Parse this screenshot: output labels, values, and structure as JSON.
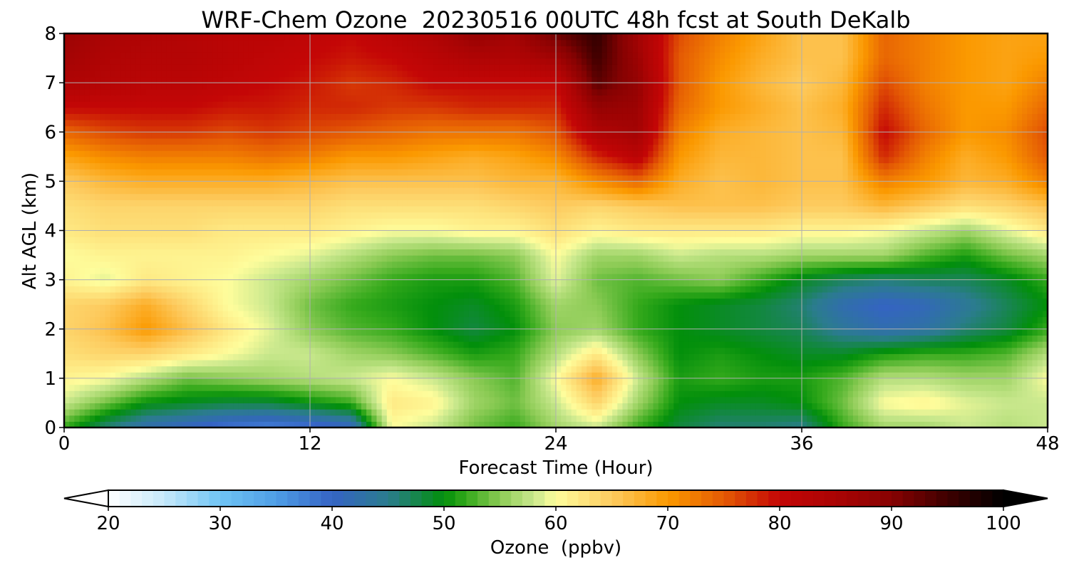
{
  "chart_data": {
    "type": "heatmap",
    "title": "WRF-Chem Ozone  20230516 00UTC 48h fcst at South DeKalb",
    "xlabel": "Forecast Time (Hour)",
    "ylabel": "Alt AGL (km)",
    "xlim": [
      0,
      48
    ],
    "ylim": [
      0,
      8
    ],
    "xticks": [
      0,
      12,
      24,
      36,
      48
    ],
    "yticks": [
      0,
      1,
      2,
      3,
      4,
      5,
      6,
      7,
      8
    ],
    "grid": true,
    "x": [
      0,
      2,
      4,
      6,
      8,
      10,
      12,
      14,
      16,
      18,
      20,
      22,
      24,
      26,
      28,
      30,
      32,
      34,
      36,
      38,
      40,
      42,
      44,
      46,
      48
    ],
    "y": [
      0,
      0.5,
      1,
      1.5,
      2,
      2.5,
      3,
      3.5,
      4,
      4.5,
      5,
      5.5,
      6,
      6.5,
      7,
      7.5,
      8
    ],
    "z": [
      [
        52,
        46,
        42,
        40,
        38,
        37,
        38,
        40,
        60,
        58,
        54,
        52,
        56,
        58,
        52,
        48,
        46,
        46,
        45,
        52,
        56,
        56,
        58,
        57,
        58
      ],
      [
        58,
        54,
        50,
        49,
        48,
        48,
        50,
        52,
        62,
        61,
        56,
        54,
        58,
        64,
        56,
        50,
        49,
        49,
        50,
        54,
        60,
        61,
        59,
        58,
        58
      ],
      [
        61,
        60,
        57,
        54,
        55,
        56,
        57,
        58,
        60,
        58,
        55,
        53,
        60,
        68,
        58,
        51,
        52,
        51,
        51,
        53,
        57,
        57,
        56,
        56,
        60
      ],
      [
        63,
        64,
        64,
        62,
        60,
        58,
        58,
        56,
        55,
        53,
        51,
        52,
        57,
        62,
        55,
        50,
        51,
        50,
        49,
        49,
        51,
        52,
        52,
        53,
        57
      ],
      [
        64,
        66,
        70,
        66,
        62,
        59,
        55,
        53,
        52,
        50,
        48,
        50,
        55,
        56,
        52,
        50,
        49,
        48,
        47,
        44,
        42,
        43,
        46,
        48,
        52
      ],
      [
        64,
        65,
        68,
        64,
        60,
        58,
        54,
        52,
        51,
        50,
        49,
        51,
        56,
        55,
        52,
        50,
        49,
        48,
        46,
        42,
        40,
        41,
        44,
        47,
        50
      ],
      [
        61,
        59,
        62,
        61,
        60,
        58,
        56,
        54,
        52,
        51,
        51,
        53,
        59,
        54,
        53,
        54,
        55,
        52,
        49,
        47,
        46,
        47,
        47,
        49,
        52
      ],
      [
        60,
        61,
        61,
        61,
        61,
        60,
        59,
        57,
        55,
        54,
        54,
        55,
        60,
        56,
        56,
        58,
        57,
        57,
        56,
        56,
        56,
        53,
        51,
        54,
        56
      ],
      [
        62,
        63,
        63,
        63,
        62,
        62,
        62,
        61,
        60,
        60,
        61,
        61,
        63,
        61,
        62,
        62,
        62,
        62,
        61,
        61,
        60,
        58,
        56,
        59,
        62
      ],
      [
        63,
        64,
        64,
        64,
        64,
        64,
        64,
        63,
        63,
        63,
        63,
        64,
        65,
        64,
        65,
        66,
        66,
        66,
        65,
        65,
        67,
        65,
        63,
        64,
        66
      ],
      [
        65,
        67,
        68,
        68,
        68,
        68,
        67,
        66,
        66,
        66,
        66,
        67,
        67,
        71,
        74,
        68,
        66,
        67,
        66,
        66,
        72,
        70,
        67,
        68,
        72
      ],
      [
        69,
        71,
        72,
        72,
        72,
        73,
        72,
        70,
        70,
        69,
        68,
        69,
        71,
        78,
        82,
        70,
        67,
        67,
        66,
        66,
        78,
        72,
        68,
        70,
        75
      ],
      [
        74,
        76,
        77,
        77,
        76,
        77,
        76,
        75,
        74,
        73,
        73,
        73,
        75,
        84,
        86,
        72,
        68,
        67,
        66,
        67,
        80,
        74,
        70,
        71,
        76
      ],
      [
        80,
        80,
        80,
        80,
        79,
        79,
        78,
        78,
        77,
        77,
        78,
        78,
        78,
        88,
        87,
        74,
        70,
        68,
        66,
        68,
        78,
        73,
        70,
        70,
        74
      ],
      [
        84,
        83,
        82,
        82,
        81,
        80,
        79,
        77,
        78,
        80,
        80,
        80,
        80,
        93,
        88,
        75,
        70,
        67,
        65,
        67,
        76,
        72,
        70,
        69,
        72
      ],
      [
        86,
        84,
        83,
        83,
        82,
        81,
        80,
        79,
        80,
        82,
        84,
        84,
        86,
        95,
        87,
        75,
        71,
        68,
        66,
        66,
        74,
        72,
        70,
        69,
        70
      ],
      [
        87,
        85,
        84,
        83,
        82,
        82,
        81,
        80,
        82,
        84,
        88,
        86,
        92,
        96,
        86,
        76,
        72,
        69,
        66,
        66,
        74,
        72,
        70,
        69,
        69
      ]
    ],
    "colorbar": {
      "label": "Ozone  (ppbv)",
      "min": 20,
      "max": 100,
      "ticks": [
        20,
        30,
        40,
        50,
        60,
        70,
        80,
        90,
        100
      ],
      "extend": "both"
    },
    "colorscale": [
      [
        20,
        "#ffffff"
      ],
      [
        25,
        "#c6e9fb"
      ],
      [
        30,
        "#6fc4f4"
      ],
      [
        35,
        "#4f9ee6"
      ],
      [
        40,
        "#3563c4"
      ],
      [
        45,
        "#2b7c8e"
      ],
      [
        50,
        "#028f0b"
      ],
      [
        52,
        "#34a91b"
      ],
      [
        55,
        "#8ccb55"
      ],
      [
        58,
        "#c9e88d"
      ],
      [
        60,
        "#fefd9c"
      ],
      [
        65,
        "#fdcb5f"
      ],
      [
        70,
        "#fb9900"
      ],
      [
        75,
        "#e45a04"
      ],
      [
        80,
        "#c40606"
      ],
      [
        85,
        "#aa0404"
      ],
      [
        90,
        "#870202"
      ],
      [
        95,
        "#3e0000"
      ],
      [
        100,
        "#000000"
      ]
    ]
  }
}
